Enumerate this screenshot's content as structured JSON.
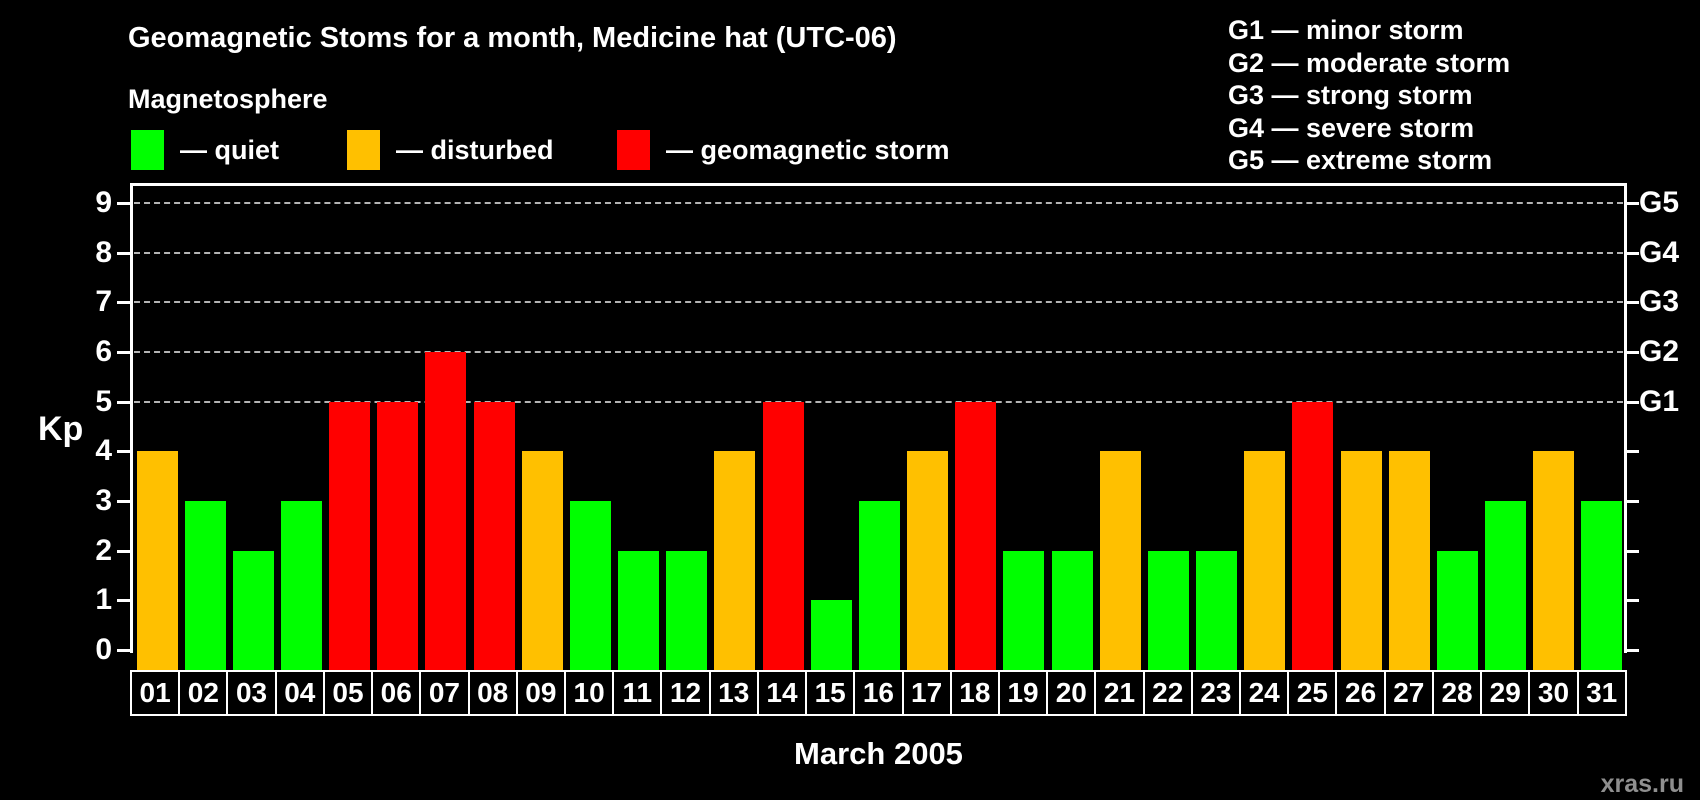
{
  "title": "Geomagnetic Stoms for a month, Medicine hat (UTC-06)",
  "legend": {
    "heading": "Magnetosphere",
    "items": [
      {
        "status": "quiet",
        "label": "— quiet",
        "color": "#00ff00"
      },
      {
        "status": "disturbed",
        "label": "— disturbed",
        "color": "#ffc000"
      },
      {
        "status": "storm",
        "label": "— geomagnetic storm",
        "color": "#ff0000"
      }
    ]
  },
  "g_scale_legend": [
    "G1 — minor storm",
    "G2 — moderate storm",
    "G3 — strong storm",
    "G4 — severe storm",
    "G5 — extreme storm"
  ],
  "axes": {
    "y_left_label": "Kp",
    "y_ticks": [
      "0",
      "1",
      "2",
      "3",
      "4",
      "5",
      "6",
      "7",
      "8",
      "9"
    ],
    "y_right_labels": [
      {
        "kp": 5,
        "label": "G1"
      },
      {
        "kp": 6,
        "label": "G2"
      },
      {
        "kp": 7,
        "label": "G3"
      },
      {
        "kp": 8,
        "label": "G4"
      },
      {
        "kp": 9,
        "label": "G5"
      }
    ],
    "x_label": "March 2005"
  },
  "watermark": "xras.ru",
  "chart_data": {
    "type": "bar",
    "title": "Geomagnetic Stoms for a month, Medicine hat (UTC-06)",
    "xlabel": "March 2005",
    "ylabel": "Kp",
    "ylim": [
      0,
      9.4
    ],
    "grid_kp_levels": [
      5,
      6,
      7,
      8,
      9
    ],
    "legend_position": "top",
    "color_rule": "Kp<=3 quiet(green), Kp=4 disturbed(orange), Kp>=5 storm(red)",
    "categories": [
      "01",
      "02",
      "03",
      "04",
      "05",
      "06",
      "07",
      "08",
      "09",
      "10",
      "11",
      "12",
      "13",
      "14",
      "15",
      "16",
      "17",
      "18",
      "19",
      "20",
      "21",
      "22",
      "23",
      "24",
      "25",
      "26",
      "27",
      "28",
      "29",
      "30",
      "31"
    ],
    "values": [
      4,
      3,
      2,
      3,
      5,
      5,
      6,
      5,
      4,
      3,
      2,
      2,
      4,
      5,
      1,
      3,
      4,
      5,
      2,
      2,
      4,
      2,
      2,
      4,
      5,
      4,
      4,
      2,
      3,
      4,
      3
    ],
    "statuses": [
      "disturbed",
      "quiet",
      "quiet",
      "quiet",
      "storm",
      "storm",
      "storm",
      "storm",
      "disturbed",
      "quiet",
      "quiet",
      "quiet",
      "disturbed",
      "storm",
      "quiet",
      "quiet",
      "disturbed",
      "storm",
      "quiet",
      "quiet",
      "disturbed",
      "quiet",
      "quiet",
      "disturbed",
      "storm",
      "disturbed",
      "disturbed",
      "quiet",
      "quiet",
      "disturbed",
      "quiet"
    ]
  }
}
